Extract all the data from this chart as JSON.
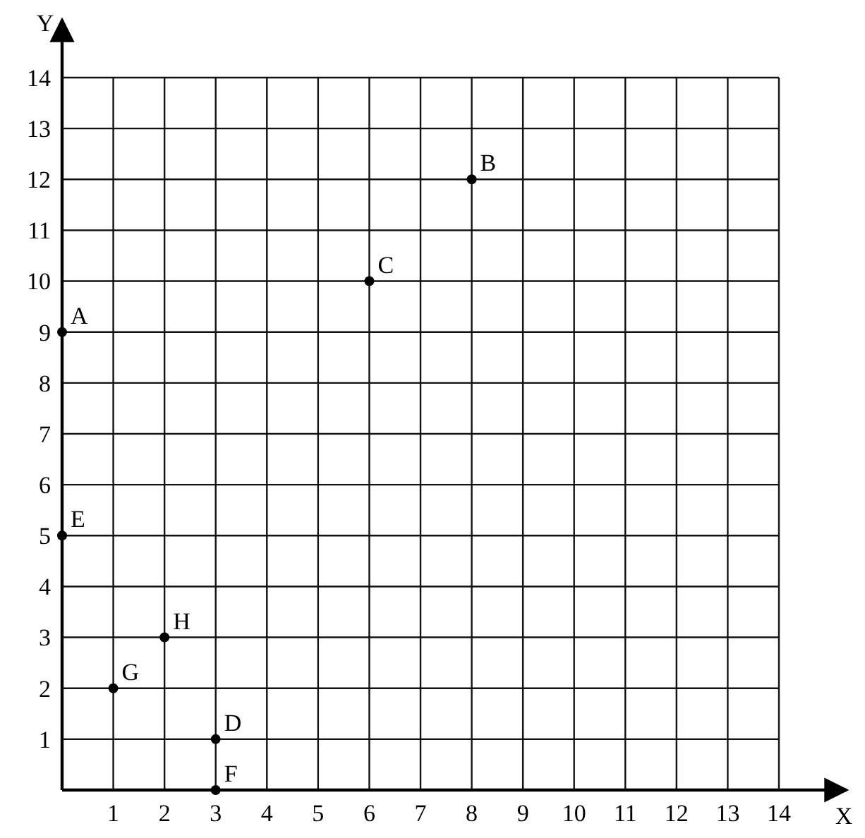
{
  "chart_data": {
    "type": "scatter",
    "xlabel": "X",
    "ylabel": "Y",
    "x": [
      0,
      8,
      6,
      3,
      0,
      3,
      1,
      2
    ],
    "series": [
      {
        "color": "#000000",
        "values": [
          9,
          12,
          10,
          1,
          5,
          0,
          2,
          3
        ]
      }
    ],
    "annotations": [
      {
        "text": "A",
        "x": 0,
        "y": 9
      },
      {
        "text": "B",
        "x": 8,
        "y": 12
      },
      {
        "text": "C",
        "x": 6,
        "y": 10
      },
      {
        "text": "D",
        "x": 3,
        "y": 1
      },
      {
        "text": "E",
        "x": 0,
        "y": 5
      },
      {
        "text": "F",
        "x": 3,
        "y": 0
      },
      {
        "text": "G",
        "x": 1,
        "y": 2
      },
      {
        "text": "H",
        "x": 2,
        "y": 3
      }
    ],
    "xlim": [
      0,
      14
    ],
    "ylim": [
      0,
      14
    ],
    "xticks": [
      {
        "value": 0,
        "label": null
      },
      1,
      2,
      3,
      4,
      5,
      6,
      7,
      8,
      9,
      10,
      11,
      12,
      13,
      14
    ],
    "yticks": [
      {
        "value": 0,
        "label": null
      },
      1,
      2,
      3,
      4,
      5,
      6,
      7,
      8,
      9,
      10,
      11,
      12,
      13,
      14
    ],
    "grid": true,
    "marker": "circle"
  }
}
